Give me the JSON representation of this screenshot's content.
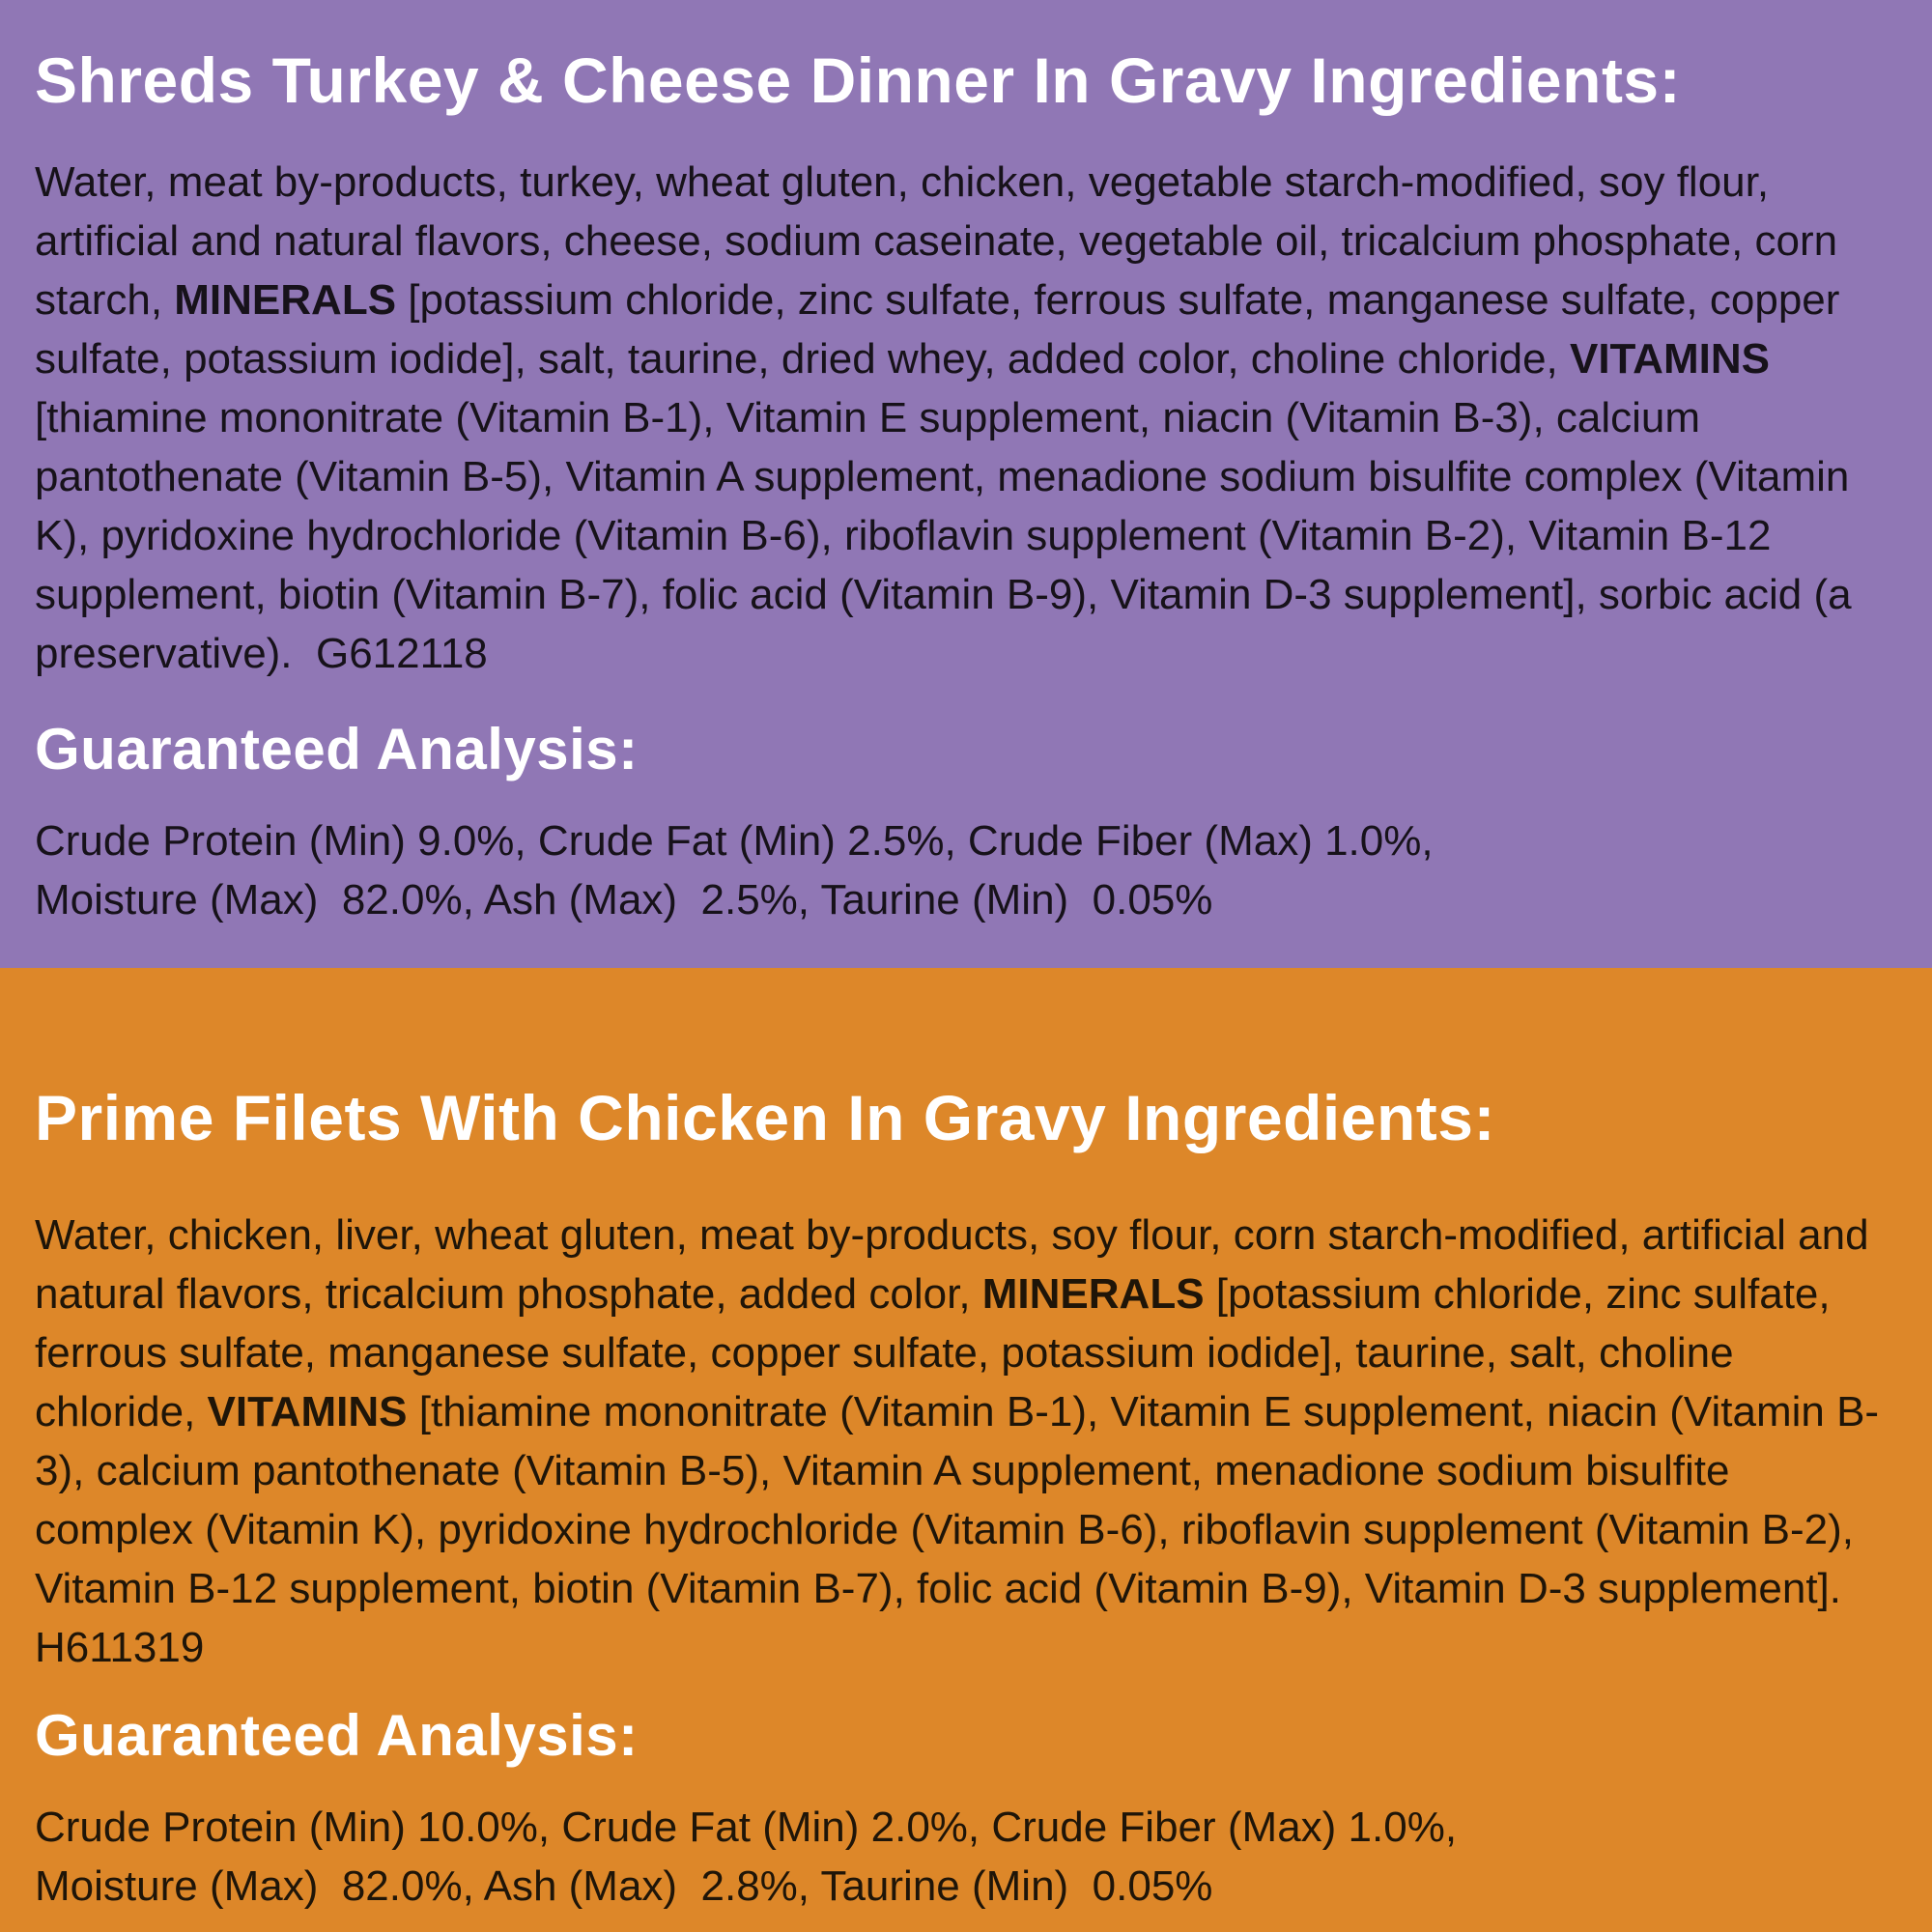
{
  "label": {
    "sections": [
      {
        "title": "Shreds Turkey & Cheese Dinner In Gravy Ingredients:",
        "colors": {
          "background": "#9077b5",
          "heading_text": "#ffffff",
          "body_text": "#17121a"
        },
        "ingredients_segments": [
          {
            "t": "Water, meat by-products, turkey, wheat gluten, chicken, vegetable starch-modified, soy flour, artificial and natural flavors, cheese, sodium caseinate, vegetable oil, tricalcium phosphate, corn starch, ",
            "b": false
          },
          {
            "t": "MINERALS",
            "b": true
          },
          {
            "t": " [potassium chloride, zinc sulfate, ferrous sulfate, manganese sulfate, copper sulfate, potassium iodide], salt, taurine, dried whey, added color, choline chloride, ",
            "b": false
          },
          {
            "t": "VITAMINS",
            "b": true
          },
          {
            "t": " [thiamine mononitrate (Vitamin B-1), Vitamin E supplement, niacin (Vitamin B-3), calcium pantothenate (Vitamin B-5), Vitamin A supplement, menadione sodium bisulfite complex (Vitamin K), pyridoxine hydrochloride (Vitamin B-6), riboflavin supplement (Vitamin B-2), Vitamin B-12 supplement, biotin (Vitamin B-7), folic acid (Vitamin B-9), Vitamin D-3 supplement], sorbic acid (a preservative).  G612118",
            "b": false
          }
        ],
        "analysis_heading": "Guaranteed Analysis:",
        "analysis_lines": [
          "Crude Protein (Min) 9.0%, Crude Fat (Min) 2.5%, Crude Fiber (Max) 1.0%,",
          "Moisture (Max)  82.0%, Ash (Max)  2.5%, Taurine (Min)  0.05%"
        ]
      },
      {
        "title": "Prime Filets With Chicken In Gravy Ingredients:",
        "colors": {
          "background": "#dd8729",
          "heading_text": "#ffffff",
          "body_text": "#1f1508"
        },
        "ingredients_segments": [
          {
            "t": "Water, chicken, liver, wheat gluten, meat by-products, soy flour, corn starch-modified, artificial and natural flavors, tricalcium phosphate, added color, ",
            "b": false
          },
          {
            "t": "MINERALS",
            "b": true
          },
          {
            "t": " [potassium chloride, zinc sulfate, ferrous sulfate, manganese sulfate, copper sulfate, potassium iodide], taurine, salt, choline chloride, ",
            "b": false
          },
          {
            "t": "VITAMINS",
            "b": true
          },
          {
            "t": " [thiamine mononitrate (Vitamin B-1), Vitamin E supplement, niacin (Vitamin B-3), calcium pantothenate (Vitamin B-5), Vitamin A supplement, menadione sodium bisulfite complex (Vitamin K), pyridoxine hydrochloride (Vitamin B-6), riboflavin supplement (Vitamin B-2), Vitamin B-12 supplement, biotin (Vitamin B-7), folic acid (Vitamin B-9), Vitamin D-3 supplement]. H611319",
            "b": false
          }
        ],
        "analysis_heading": "Guaranteed Analysis:",
        "analysis_lines": [
          "Crude Protein (Min) 10.0%, Crude Fat (Min) 2.0%, Crude Fiber (Max) 1.0%,",
          "Moisture (Max)  82.0%, Ash (Max)  2.8%, Taurine (Min)  0.05%"
        ]
      }
    ]
  }
}
